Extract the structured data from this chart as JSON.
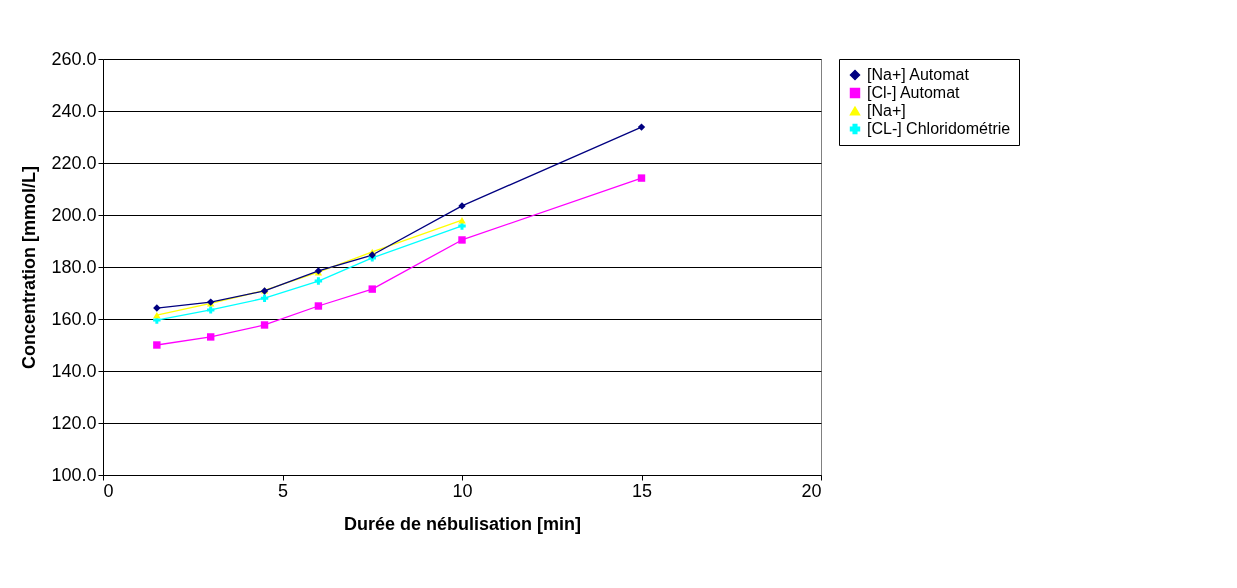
{
  "chart_data": {
    "type": "line",
    "xlabel": "Durée de nébulisation [min]",
    "ylabel": "Concentration [mmol/L]",
    "xlim": [
      0,
      20
    ],
    "xticks": [
      0,
      5,
      10,
      15,
      20
    ],
    "ylim": [
      100,
      260
    ],
    "yticks": [
      {
        "value": 100,
        "label": "100.0"
      },
      {
        "value": 120,
        "label": "120.0"
      },
      {
        "value": 140,
        "label": "140.0"
      },
      {
        "value": 160,
        "label": "160.0"
      },
      {
        "value": 180,
        "label": "180.0"
      },
      {
        "value": 200,
        "label": "200.0"
      },
      {
        "value": 220,
        "label": "220.0"
      },
      {
        "value": 240,
        "label": "240.0"
      },
      {
        "value": 260,
        "label": "260.0"
      }
    ],
    "grid": "y",
    "legend": "right",
    "series": [
      {
        "name": "[Na+] Automat",
        "color": "#000080",
        "marker": "diamond",
        "x": [
          1.5,
          3,
          4.5,
          6,
          7.5,
          10,
          15
        ],
        "values": [
          164.2,
          166.5,
          170.8,
          178.5,
          184.6,
          203.5,
          233.8
        ]
      },
      {
        "name": "[Cl-] Automat",
        "color": "#ff00ff",
        "marker": "square",
        "x": [
          1.5,
          3,
          4.5,
          6,
          7.5,
          10,
          15
        ],
        "values": [
          150,
          153.1,
          157.7,
          165,
          171.5,
          190.4,
          214.2
        ]
      },
      {
        "name": "[Na+]",
        "color": "#ffff00",
        "marker": "triangle",
        "x": [
          1.5,
          3,
          4.5,
          6,
          7.5,
          10
        ],
        "values": [
          161.5,
          166,
          171,
          178,
          185.8,
          198
        ]
      },
      {
        "name": "[CL-] Chloridométrie",
        "color": "#00ffff",
        "marker": "cross",
        "x": [
          1.5,
          3,
          4.5,
          6,
          7.5,
          10
        ],
        "values": [
          159.6,
          163.5,
          168,
          174.6,
          183.5,
          195.8
        ]
      }
    ]
  }
}
